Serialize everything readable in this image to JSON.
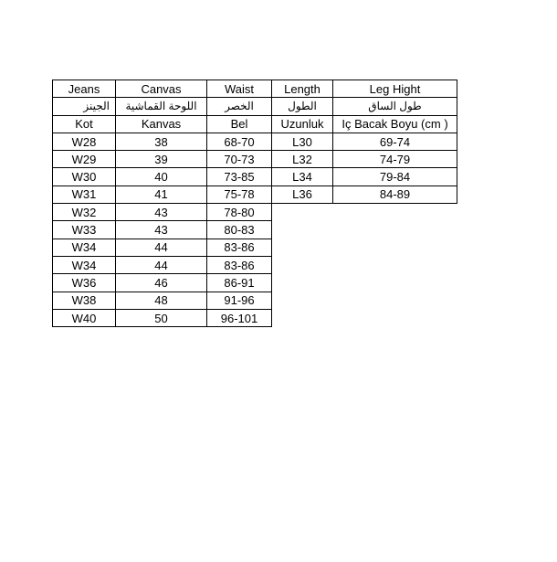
{
  "size_chart": {
    "header": {
      "en": {
        "jeans": "Jeans",
        "canvas": "Canvas",
        "waist": "Waist",
        "length": "Length",
        "leg": "Leg Hight"
      },
      "ar": {
        "jeans": "الجينز",
        "canvas": "اللوحة القماشية",
        "waist": "الخصر",
        "length": "الطول",
        "leg": "طول الساق"
      },
      "tr": {
        "jeans": "Kot",
        "canvas": "Kanvas",
        "waist": "Bel",
        "length": "Uzunluk",
        "leg": "Iç Bacak Boyu (cm )"
      }
    },
    "rows": [
      {
        "jeans": "W28",
        "canvas": "38",
        "waist": "68-70",
        "length": "L30",
        "leg": "69-74"
      },
      {
        "jeans": "W29",
        "canvas": "39",
        "waist": "70-73",
        "length": "L32",
        "leg": "74-79"
      },
      {
        "jeans": "W30",
        "canvas": "40",
        "waist": "73-85",
        "length": "L34",
        "leg": "79-84"
      },
      {
        "jeans": "W31",
        "canvas": "41",
        "waist": "75-78",
        "length": "L36",
        "leg": "84-89"
      },
      {
        "jeans": "W32",
        "canvas": "43",
        "waist": "78-80"
      },
      {
        "jeans": "W33",
        "canvas": "43",
        "waist": "80-83"
      },
      {
        "jeans": "W34",
        "canvas": "44",
        "waist": "83-86"
      },
      {
        "jeans": "W34",
        "canvas": "44",
        "waist": "83-86"
      },
      {
        "jeans": "W36",
        "canvas": "46",
        "waist": "86-91"
      },
      {
        "jeans": "W38",
        "canvas": "48",
        "waist": "91-96"
      },
      {
        "jeans": "W40",
        "canvas": "50",
        "waist": "96-101"
      }
    ],
    "colors": {
      "border": "#000000",
      "text": "#000000",
      "background": "#ffffff"
    }
  }
}
